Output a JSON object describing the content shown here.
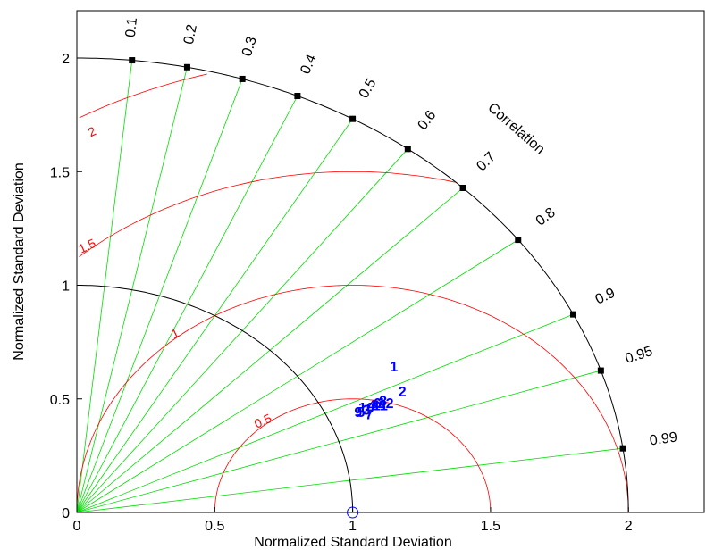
{
  "chart_data": {
    "type": "taylor_diagram",
    "title": "",
    "xlabel": "Normalized Standard Deviation",
    "ylabel": "Normalized Standard Deviation",
    "xlim": [
      0,
      2.25
    ],
    "ylim": [
      0,
      2.2
    ],
    "x_ticks": [
      0,
      0.5,
      1,
      1.5,
      2
    ],
    "x_tick_labels": [
      "0",
      "0.5",
      "1",
      "1.5",
      "2"
    ],
    "y_ticks": [
      0,
      0.5,
      1,
      1.5,
      2
    ],
    "y_tick_labels": [
      "0",
      "0.5",
      "1",
      "1.5",
      "2"
    ],
    "max_std": 2,
    "reference_std": 1,
    "correlation_title": "Correlation",
    "correlation_ticks": [
      0.1,
      0.2,
      0.3,
      0.4,
      0.5,
      0.6,
      0.7,
      0.8,
      0.9,
      0.95,
      0.99
    ],
    "correlation_tick_labels": [
      "0.1",
      "0.2",
      "0.3",
      "0.4",
      "0.5",
      "0.6",
      "0.7",
      "0.8",
      "0.9",
      "0.95",
      "0.99"
    ],
    "rms_contours": [
      0.5,
      1,
      1.5,
      2
    ],
    "rms_contour_labels": [
      "0.5",
      "1",
      "1.5",
      "2"
    ],
    "points": [
      {
        "label": "1",
        "x": 1.15,
        "y": 0.62
      },
      {
        "label": "2",
        "x": 1.18,
        "y": 0.51
      },
      {
        "label": "3",
        "x": 1.05,
        "y": 0.43
      },
      {
        "label": "4",
        "x": 1.07,
        "y": 0.45
      },
      {
        "label": "5",
        "x": 1.03,
        "y": 0.42
      },
      {
        "label": "6",
        "x": 1.09,
        "y": 0.46
      },
      {
        "label": "7",
        "x": 1.06,
        "y": 0.41
      },
      {
        "label": "8",
        "x": 1.11,
        "y": 0.47
      },
      {
        "label": "9",
        "x": 1.02,
        "y": 0.42
      },
      {
        "label": "10",
        "x": 1.05,
        "y": 0.44
      },
      {
        "label": "11",
        "x": 1.1,
        "y": 0.45
      },
      {
        "label": "12",
        "x": 1.12,
        "y": 0.46
      }
    ],
    "reference_point": {
      "x": 1,
      "y": 0
    },
    "colors": {
      "axes": "#000000",
      "correlation_lines": "#00dd00",
      "rms_contours": "#ff0000",
      "points": "#0000ff"
    },
    "grid": false
  }
}
